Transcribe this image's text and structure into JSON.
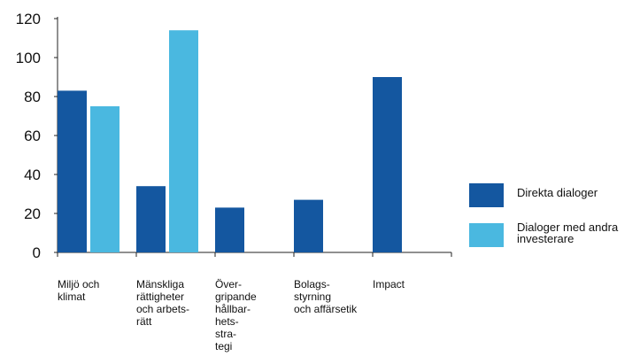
{
  "chart_data": {
    "type": "bar",
    "categories": [
      [
        "Miljö och",
        "klimat"
      ],
      [
        "Mänskliga",
        "rättigheter",
        "och arbets-",
        "rätt"
      ],
      [
        "Över-",
        "gripande",
        "hållbar-",
        "hets-",
        "stra-",
        "tegi"
      ],
      [
        "Bolags-",
        "styrning",
        "och affärsetik"
      ],
      [
        "Impact"
      ]
    ],
    "series": [
      {
        "name": "Direkta dialoger",
        "color": "#1457a0",
        "values": [
          83,
          34,
          23,
          27,
          90
        ]
      },
      {
        "name": "Dialoger med andra investerare",
        "color": "#4ab8e0",
        "values": [
          75,
          114,
          null,
          null,
          null
        ]
      }
    ],
    "legend": {
      "position": "right",
      "items": [
        {
          "lines": [
            "Direkta dialoger"
          ],
          "color": "#1457a0"
        },
        {
          "lines": [
            "Dialoger med andra",
            "investerare"
          ],
          "color": "#4ab8e0"
        }
      ]
    },
    "yticks": [
      "0",
      "20",
      "40",
      "60",
      "80",
      "100",
      "120"
    ],
    "ylim": [
      0,
      120
    ],
    "grid": false,
    "title": "",
    "xlabel": "",
    "ylabel": ""
  }
}
